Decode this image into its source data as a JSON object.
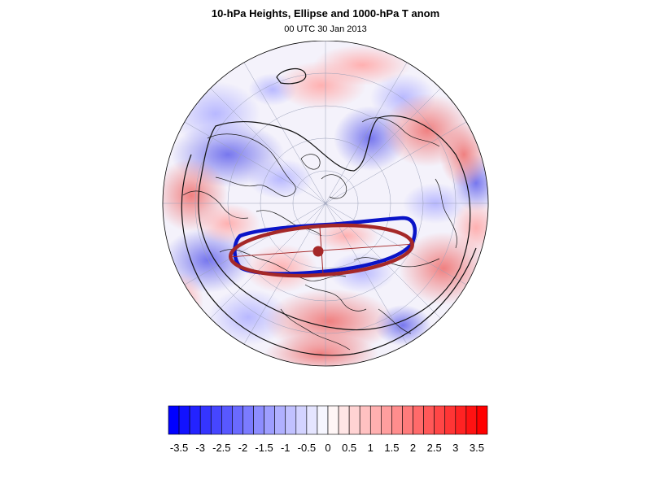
{
  "title": "10-hPa Heights, Ellipse and 1000-hPa T anom",
  "subtitle": "00 UTC 30 Jan 2013",
  "colorbar": {
    "labels": [
      "-3.5",
      "-3",
      "-2.5",
      "-2",
      "-1.5",
      "-1",
      "-0.5",
      "0",
      "0.5",
      "1",
      "1.5",
      "2",
      "2.5",
      "3",
      "3.5"
    ],
    "levels": [
      -3.75,
      -3.5,
      -3.25,
      -3,
      -2.75,
      -2.5,
      -2.25,
      -2,
      -1.75,
      -1.5,
      -1.25,
      -1,
      -0.75,
      -0.5,
      -0.25,
      0,
      0.25,
      0.5,
      0.75,
      1,
      1.25,
      1.5,
      1.75,
      2,
      2.25,
      2.5,
      2.75,
      3,
      3.25,
      3.5,
      3.75
    ],
    "colors": {
      "negative_end": "#0000ff",
      "neutral": "#ffffff",
      "positive_end": "#ff0000"
    }
  },
  "map": {
    "projection": "polar stereographic (Northern Hemisphere)",
    "ellipse_colors": {
      "observed_contour": "#0a14c8",
      "fitted_ellipse": "#a52828"
    },
    "fill_field": "1000-hPa temperature anomaly",
    "contour_field": "10-hPa geopotential height"
  }
}
